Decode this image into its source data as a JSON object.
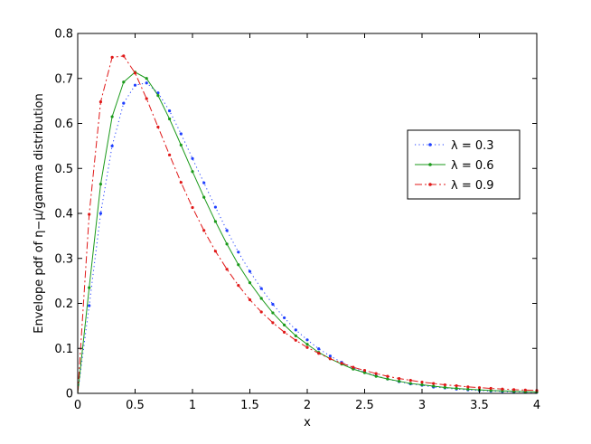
{
  "chart_data": {
    "type": "line",
    "xlabel": "x",
    "ylabel": "Envelope pdf of η−μ/gamma distribution",
    "xlim": [
      0,
      4
    ],
    "ylim": [
      0,
      0.8
    ],
    "xticks": [
      0,
      0.5,
      1,
      1.5,
      2,
      2.5,
      3,
      3.5,
      4
    ],
    "xtick_labels": [
      "0",
      "0.5",
      "1",
      "1.5",
      "2",
      "2.5",
      "3",
      "3.5",
      "4"
    ],
    "yticks": [
      0,
      0.1,
      0.2,
      0.3,
      0.4,
      0.5,
      0.6,
      0.7,
      0.8
    ],
    "ytick_labels": [
      "0",
      "0.1",
      "0.2",
      "0.3",
      "0.4",
      "0.5",
      "0.6",
      "0.7",
      "0.8"
    ],
    "grid": false,
    "legend_position": "right",
    "x": [
      0,
      0.1,
      0.2,
      0.3,
      0.4,
      0.5,
      0.6,
      0.7,
      0.8,
      0.9,
      1.0,
      1.1,
      1.2,
      1.3,
      1.4,
      1.5,
      1.6,
      1.7,
      1.8,
      1.9,
      2.0,
      2.1,
      2.2,
      2.3,
      2.4,
      2.5,
      2.6,
      2.7,
      2.8,
      2.9,
      3.0,
      3.1,
      3.2,
      3.3,
      3.4,
      3.5,
      3.6,
      3.7,
      3.8,
      3.9,
      4.0
    ],
    "series": [
      {
        "name": "λ = 0.3",
        "color": "#1f3fff",
        "style": "dotted",
        "values": [
          0,
          0.195,
          0.4,
          0.55,
          0.645,
          0.685,
          0.69,
          0.668,
          0.628,
          0.577,
          0.522,
          0.468,
          0.414,
          0.362,
          0.314,
          0.271,
          0.233,
          0.198,
          0.168,
          0.141,
          0.119,
          0.099,
          0.083,
          0.069,
          0.057,
          0.047,
          0.039,
          0.032,
          0.026,
          0.021,
          0.018,
          0.014,
          0.012,
          0.0095,
          0.0078,
          0.0063,
          0.0051,
          0.0042,
          0.0034,
          0.0028,
          0.0023
        ]
      },
      {
        "name": "λ = 0.6",
        "color": "#1a9a1a",
        "style": "solid",
        "values": [
          0,
          0.235,
          0.465,
          0.615,
          0.692,
          0.714,
          0.7,
          0.662,
          0.61,
          0.552,
          0.493,
          0.436,
          0.382,
          0.332,
          0.286,
          0.246,
          0.211,
          0.179,
          0.152,
          0.128,
          0.109,
          0.091,
          0.077,
          0.065,
          0.054,
          0.046,
          0.038,
          0.032,
          0.027,
          0.022,
          0.019,
          0.016,
          0.013,
          0.011,
          0.0092,
          0.0077,
          0.0064,
          0.0054,
          0.0045,
          0.0037,
          0.0031
        ]
      },
      {
        "name": "λ = 0.9",
        "color": "#e01818",
        "style": "dashdot",
        "values": [
          0,
          0.398,
          0.648,
          0.747,
          0.75,
          0.712,
          0.655,
          0.592,
          0.53,
          0.469,
          0.413,
          0.362,
          0.316,
          0.276,
          0.24,
          0.208,
          0.181,
          0.157,
          0.136,
          0.118,
          0.102,
          0.089,
          0.077,
          0.067,
          0.058,
          0.051,
          0.044,
          0.038,
          0.033,
          0.029,
          0.025,
          0.022,
          0.019,
          0.017,
          0.0145,
          0.0127,
          0.011,
          0.0096,
          0.0084,
          0.0073,
          0.0064
        ]
      }
    ]
  }
}
